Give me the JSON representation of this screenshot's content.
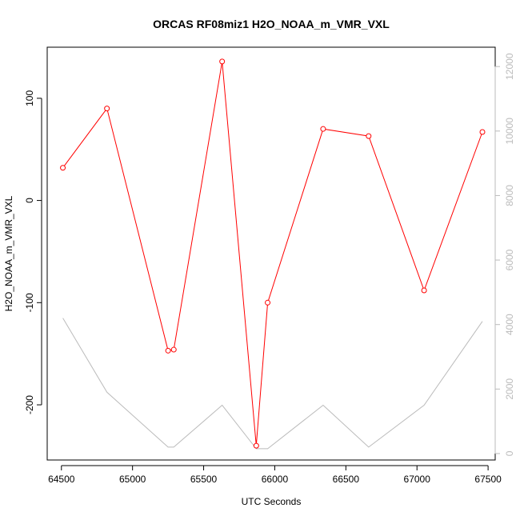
{
  "chart_data": {
    "type": "line",
    "title": "ORCAS RF08miz1 H2O_NOAA_m_VMR_VXL",
    "xlabel": "UTC Seconds",
    "ylabel": "H2O_NOAA_m_VMR_VXL",
    "xlim": [
      64400,
      67550
    ],
    "ylim": [
      -254,
      150
    ],
    "y2lim": [
      -200,
      12600
    ],
    "x_ticks": [
      64500,
      65000,
      65500,
      66000,
      66500,
      67000,
      67500
    ],
    "y_ticks": [
      -200,
      -100,
      0,
      100
    ],
    "y2_ticks": [
      0,
      2000,
      4000,
      6000,
      8000,
      10000,
      12000
    ],
    "grid": false,
    "series": [
      {
        "color": "#ff0000",
        "axis": "left",
        "marker": "open-circle",
        "x": [
          64510,
          64820,
          65250,
          65290,
          65630,
          65870,
          65950,
          66340,
          66660,
          67050,
          67460
        ],
        "y": [
          32,
          90,
          -147,
          -146,
          136,
          -240,
          -100,
          70,
          63,
          -88,
          67
        ]
      },
      {
        "color": "#bbbbbb",
        "axis": "right",
        "marker": "none",
        "x": [
          64510,
          64820,
          65250,
          65290,
          65630,
          65870,
          65950,
          66340,
          66660,
          67050,
          67460
        ],
        "y": [
          4200,
          1900,
          200,
          200,
          1500,
          150,
          150,
          1500,
          200,
          1500,
          4100
        ]
      }
    ]
  }
}
